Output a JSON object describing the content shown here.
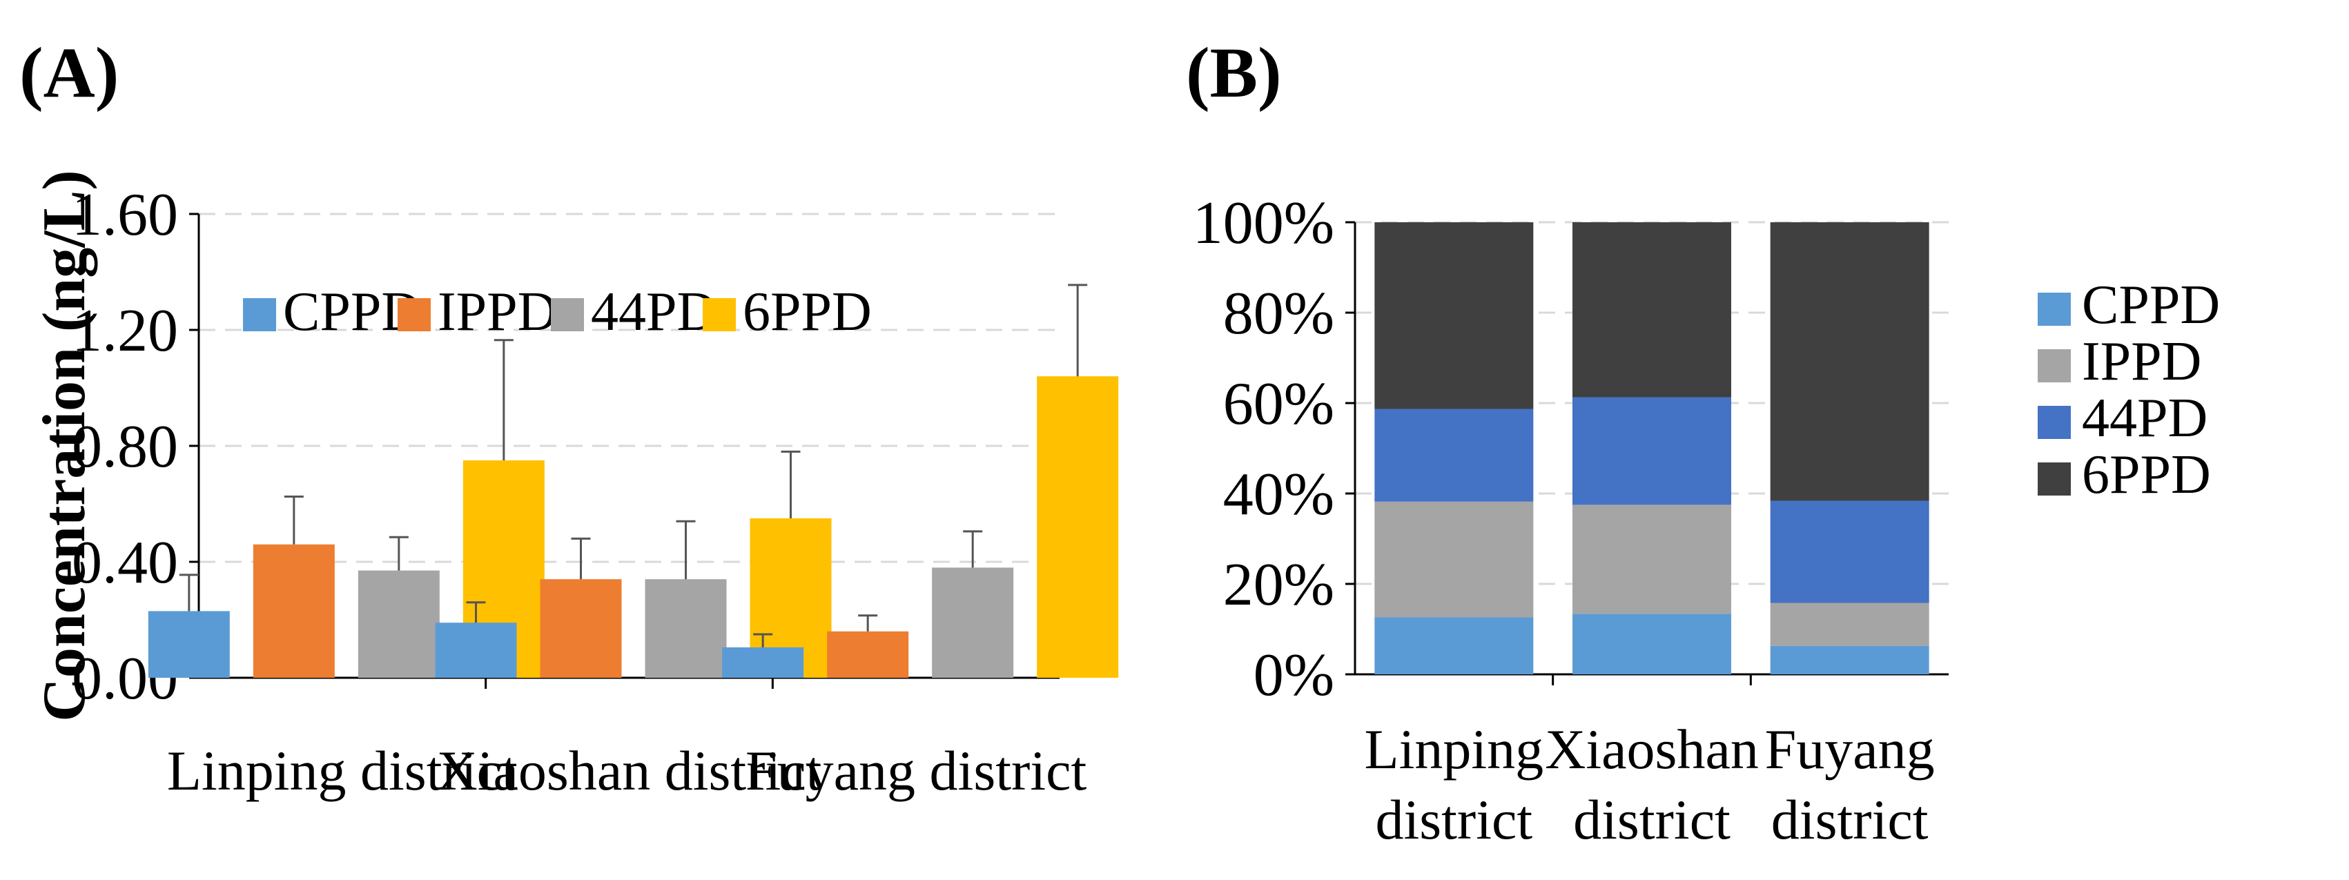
{
  "chart_data": [
    {
      "panel_label": "(A)",
      "type": "bar",
      "title": "",
      "xlabel": "",
      "ylabel": "Concentration (ng/L)",
      "ylim": [
        0,
        1.6
      ],
      "yticks": [
        "0.00",
        "0.40",
        "0.80",
        "1.20",
        "1.60"
      ],
      "ytick_values": [
        0,
        0.4,
        0.8,
        1.2,
        1.6
      ],
      "grid": "horizontal dashed",
      "legend_position": "top-left",
      "categories": [
        "Linping district",
        "Xiaoshan district",
        "Fuyang district"
      ],
      "series": [
        {
          "name": "CPPD",
          "color": "#5B9BD5",
          "values": [
            0.23,
            0.19,
            0.105
          ],
          "errors": [
            0.125,
            0.07,
            0.045
          ]
        },
        {
          "name": "IPPD",
          "color": "#ED7D31",
          "values": [
            0.46,
            0.34,
            0.16
          ],
          "errors": [
            0.165,
            0.14,
            0.055
          ]
        },
        {
          "name": "44PD",
          "color": "#A5A5A5",
          "values": [
            0.37,
            0.34,
            0.38
          ],
          "errors": [
            0.115,
            0.2,
            0.125
          ]
        },
        {
          "name": "6PPD",
          "color": "#FFC000",
          "values": [
            0.75,
            0.55,
            1.04
          ],
          "errors": [
            0.415,
            0.23,
            0.315
          ]
        }
      ]
    },
    {
      "panel_label": "(B)",
      "type": "bar",
      "stacked": true,
      "percent": true,
      "title": "",
      "xlabel": "",
      "ylabel": "",
      "ylim": [
        0,
        100
      ],
      "yticks": [
        "0%",
        "20%",
        "40%",
        "60%",
        "80%",
        "100%"
      ],
      "ytick_values": [
        0,
        20,
        40,
        60,
        80,
        100
      ],
      "grid": "horizontal dashed",
      "legend_position": "right",
      "categories": [
        [
          "Linping",
          "district"
        ],
        [
          "Xiaoshan",
          "district"
        ],
        [
          "Fuyang",
          "district"
        ]
      ],
      "series": [
        {
          "name": "CPPD",
          "color": "#5B9BD5",
          "values": [
            12.6,
            13.4,
            6.3
          ]
        },
        {
          "name": "IPPD",
          "color": "#A5A5A5",
          "values": [
            25.6,
            24.1,
            9.5
          ]
        },
        {
          "name": "44PD",
          "color": "#4472C4",
          "values": [
            20.5,
            23.8,
            22.6
          ]
        },
        {
          "name": "6PPD",
          "color": "#404040",
          "values": [
            41.3,
            38.7,
            61.6
          ]
        }
      ]
    }
  ]
}
